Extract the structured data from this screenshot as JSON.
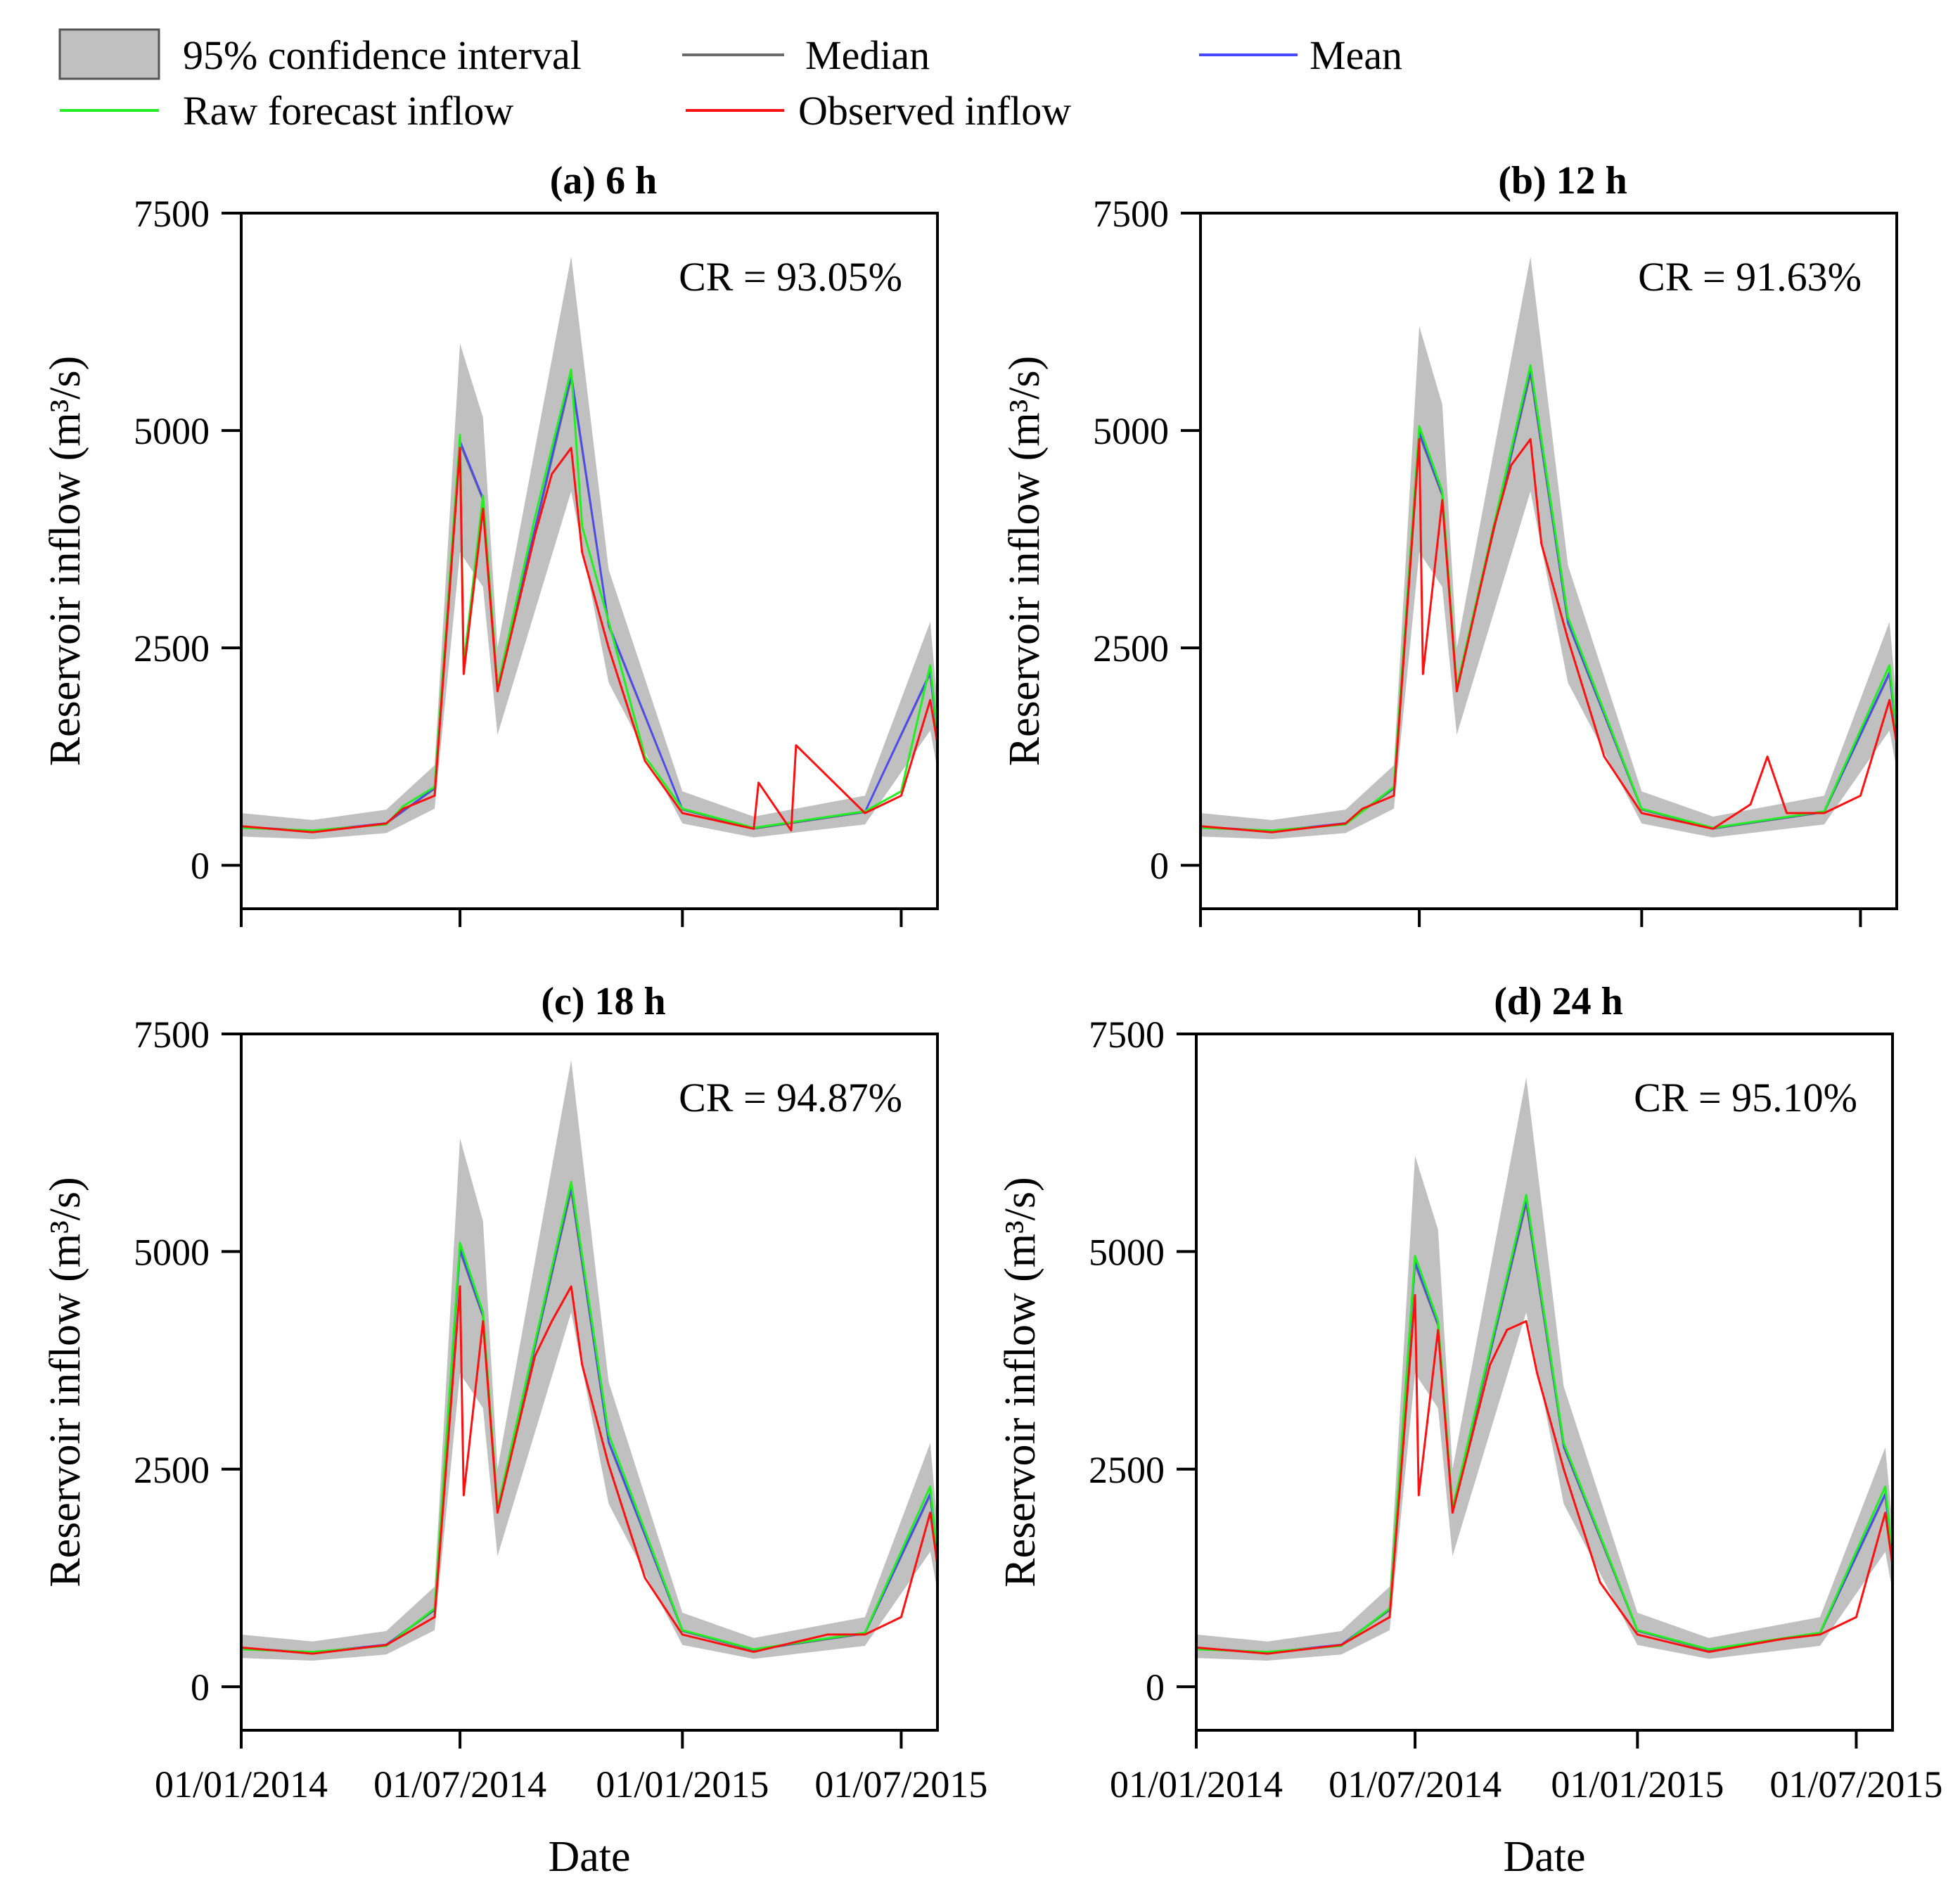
{
  "legend": {
    "ci": {
      "label": "95% confidence interval",
      "color": "#c0c0c0"
    },
    "median": {
      "label": "Median",
      "color": "#6b6b6b"
    },
    "mean": {
      "label": "Mean",
      "color": "#4848ff"
    },
    "raw": {
      "label": "Raw forecast inflow",
      "color": "#22ee22"
    },
    "observed": {
      "label": "Observed inflow",
      "color": "#ff1010"
    }
  },
  "chart_data": [
    {
      "type": "line",
      "title": "(a) 6 h",
      "xlabel": "",
      "ylabel": "Reservoir inflow (m³/s)",
      "ylim": [
        -500,
        7500
      ],
      "yticks": [
        "0",
        "2500",
        "5000",
        "7500"
      ],
      "xticks": [],
      "xlim": [
        "01/01/2014",
        "31/07/2015"
      ],
      "annotation": "CR = 93.05%",
      "series": [
        {
          "name": "Observed inflow",
          "x": [
            "01/01/2014",
            "01/03/2014",
            "01/05/2014",
            "15/05/2014",
            "10/06/2014",
            "01/07/2014",
            "04/07/2014",
            "20/07/2014",
            "01/08/2014",
            "01/09/2014",
            "15/09/2014",
            "01/10/2014",
            "10/10/2014",
            "01/11/2014",
            "01/12/2014",
            "01/01/2015",
            "01/03/2015",
            "05/03/2015",
            "01/04/2015",
            "05/04/2015",
            "01/06/2015",
            "01/07/2015",
            "25/07/2015",
            "31/07/2015"
          ],
          "y": [
            450,
            380,
            480,
            650,
            800,
            4800,
            2200,
            4100,
            2000,
            3800,
            4500,
            4800,
            3600,
            2500,
            1200,
            600,
            420,
            950,
            400,
            1380,
            600,
            800,
            1900,
            1400
          ]
        },
        {
          "name": "Raw forecast inflow",
          "x": [
            "01/01/2014",
            "01/03/2014",
            "01/05/2014",
            "15/05/2014",
            "10/06/2014",
            "01/07/2014",
            "04/07/2014",
            "20/07/2014",
            "01/08/2014",
            "01/09/2014",
            "15/09/2014",
            "01/10/2014",
            "10/10/2014",
            "01/11/2014",
            "01/12/2014",
            "01/01/2015",
            "01/03/2015",
            "01/06/2015",
            "01/07/2015",
            "25/07/2015",
            "31/07/2015"
          ],
          "y": [
            430,
            400,
            470,
            680,
            900,
            4950,
            2300,
            4250,
            2050,
            4000,
            4800,
            5700,
            3900,
            2800,
            1250,
            650,
            430,
            620,
            850,
            2300,
            1500
          ]
        },
        {
          "name": "Median",
          "x": [
            "01/01/2014",
            "01/03/2014",
            "01/05/2014",
            "10/06/2014",
            "01/07/2014",
            "20/07/2014",
            "01/08/2014",
            "01/10/2014",
            "01/11/2014",
            "01/01/2015",
            "01/03/2015",
            "01/06/2015",
            "25/07/2015",
            "31/07/2015"
          ],
          "y": [
            440,
            390,
            480,
            880,
            4850,
            4200,
            2030,
            5600,
            2750,
            640,
            420,
            610,
            2200,
            1450
          ]
        },
        {
          "name": "Mean",
          "x": [
            "01/01/2014",
            "01/03/2014",
            "01/05/2014",
            "10/06/2014",
            "01/07/2014",
            "20/07/2014",
            "01/08/2014",
            "01/10/2014",
            "01/11/2014",
            "01/01/2015",
            "01/03/2015",
            "01/06/2015",
            "25/07/2015",
            "31/07/2015"
          ],
          "y": [
            445,
            395,
            485,
            890,
            4880,
            4220,
            2040,
            5650,
            2770,
            645,
            425,
            615,
            2220,
            1460
          ]
        },
        {
          "name": "95% confidence interval",
          "x": [
            "01/01/2014",
            "01/03/2014",
            "01/05/2014",
            "10/06/2014",
            "01/07/2014",
            "20/07/2014",
            "01/08/2014",
            "01/10/2014",
            "01/11/2014",
            "01/01/2015",
            "01/03/2015",
            "01/06/2015",
            "25/07/2015",
            "31/07/2015"
          ],
          "upper": [
            600,
            520,
            640,
            1150,
            6000,
            5150,
            2500,
            7000,
            3400,
            850,
            560,
            800,
            2800,
            1850
          ],
          "lower": [
            330,
            300,
            370,
            650,
            3600,
            3200,
            1500,
            4300,
            2100,
            480,
            320,
            470,
            1550,
            1100
          ]
        }
      ]
    },
    {
      "type": "line",
      "title": "(b) 12 h",
      "xlabel": "",
      "ylabel": "Reservoir inflow (m³/s)",
      "ylim": [
        -500,
        7500
      ],
      "yticks": [
        "0",
        "2500",
        "5000",
        "7500"
      ],
      "xticks": [],
      "xlim": [
        "01/01/2014",
        "31/07/2015"
      ],
      "annotation": "CR = 91.63%",
      "series": [
        {
          "name": "Observed inflow",
          "x": [
            "01/01/2014",
            "01/03/2014",
            "01/05/2014",
            "15/05/2014",
            "10/06/2014",
            "01/07/2014",
            "04/07/2014",
            "20/07/2014",
            "01/08/2014",
            "01/09/2014",
            "15/09/2014",
            "01/10/2014",
            "10/10/2014",
            "01/11/2014",
            "01/12/2014",
            "01/01/2015",
            "01/03/2015",
            "01/04/2015",
            "15/04/2015",
            "01/05/2015",
            "01/06/2015",
            "01/07/2015",
            "25/07/2015",
            "31/07/2015"
          ],
          "y": [
            450,
            380,
            480,
            650,
            800,
            4900,
            2200,
            4200,
            2000,
            3900,
            4600,
            4900,
            3700,
            2600,
            1250,
            600,
            420,
            700,
            1250,
            600,
            600,
            800,
            1900,
            1400
          ]
        },
        {
          "name": "Raw forecast inflow",
          "x": [
            "01/01/2014",
            "01/03/2014",
            "01/05/2014",
            "10/06/2014",
            "01/07/2014",
            "20/07/2014",
            "01/08/2014",
            "01/10/2014",
            "01/11/2014",
            "01/01/2015",
            "01/03/2015",
            "01/06/2015",
            "25/07/2015",
            "31/07/2015"
          ],
          "y": [
            430,
            400,
            470,
            900,
            5050,
            4300,
            2050,
            5750,
            2850,
            650,
            430,
            620,
            2300,
            1500
          ]
        },
        {
          "name": "Median",
          "x": [
            "01/01/2014",
            "01/03/2014",
            "01/05/2014",
            "10/06/2014",
            "01/07/2014",
            "20/07/2014",
            "01/08/2014",
            "01/10/2014",
            "01/11/2014",
            "01/01/2015",
            "01/03/2015",
            "01/06/2015",
            "25/07/2015",
            "31/07/2015"
          ],
          "y": [
            440,
            390,
            480,
            880,
            4950,
            4250,
            2030,
            5650,
            2780,
            640,
            420,
            610,
            2200,
            1450
          ]
        },
        {
          "name": "Mean",
          "x": [
            "01/01/2014",
            "01/03/2014",
            "01/05/2014",
            "10/06/2014",
            "01/07/2014",
            "20/07/2014",
            "01/08/2014",
            "01/10/2014",
            "01/11/2014",
            "01/01/2015",
            "01/03/2015",
            "01/06/2015",
            "25/07/2015",
            "31/07/2015"
          ],
          "y": [
            445,
            395,
            485,
            890,
            4980,
            4270,
            2040,
            5700,
            2800,
            645,
            425,
            615,
            2220,
            1460
          ]
        },
        {
          "name": "95% confidence interval",
          "x": [
            "01/01/2014",
            "01/03/2014",
            "01/05/2014",
            "10/06/2014",
            "01/07/2014",
            "20/07/2014",
            "01/08/2014",
            "01/10/2014",
            "01/11/2014",
            "01/01/2015",
            "01/03/2015",
            "01/06/2015",
            "25/07/2015",
            "31/07/2015"
          ],
          "upper": [
            600,
            520,
            640,
            1150,
            6200,
            5300,
            2500,
            7000,
            3450,
            850,
            560,
            800,
            2800,
            1850
          ],
          "lower": [
            330,
            300,
            370,
            650,
            3600,
            3200,
            1500,
            4300,
            2100,
            480,
            320,
            470,
            1550,
            1100
          ]
        }
      ]
    },
    {
      "type": "line",
      "title": "(c) 18 h",
      "xlabel": "Date",
      "ylabel": "Reservoir inflow (m³/s)",
      "ylim": [
        -500,
        7500
      ],
      "yticks": [
        "0",
        "2500",
        "5000",
        "7500"
      ],
      "xticks": [
        "01/01/2014",
        "01/07/2014",
        "01/01/2015",
        "01/07/2015"
      ],
      "xlim": [
        "01/01/2014",
        "31/07/2015"
      ],
      "annotation": "CR = 94.87%",
      "series": [
        {
          "name": "Observed inflow",
          "x": [
            "01/01/2014",
            "01/03/2014",
            "01/05/2014",
            "10/06/2014",
            "01/07/2014",
            "04/07/2014",
            "20/07/2014",
            "01/08/2014",
            "01/09/2014",
            "15/09/2014",
            "01/10/2014",
            "10/10/2014",
            "01/11/2014",
            "01/12/2014",
            "01/01/2015",
            "01/03/2015",
            "01/05/2015",
            "01/06/2015",
            "01/07/2015",
            "25/07/2015",
            "31/07/2015"
          ],
          "y": [
            450,
            380,
            480,
            800,
            4600,
            2200,
            4200,
            2000,
            3800,
            4200,
            4600,
            3700,
            2550,
            1250,
            600,
            400,
            600,
            600,
            800,
            2000,
            1400
          ]
        },
        {
          "name": "Raw forecast inflow",
          "x": [
            "01/01/2014",
            "01/03/2014",
            "01/05/2014",
            "10/06/2014",
            "01/07/2014",
            "20/07/2014",
            "01/08/2014",
            "01/10/2014",
            "01/11/2014",
            "01/01/2015",
            "01/03/2015",
            "01/06/2015",
            "25/07/2015",
            "31/07/2015"
          ],
          "y": [
            430,
            400,
            470,
            900,
            5100,
            4300,
            2050,
            5800,
            2900,
            650,
            430,
            620,
            2300,
            1500
          ]
        },
        {
          "name": "Median",
          "x": [
            "01/01/2014",
            "01/03/2014",
            "01/05/2014",
            "10/06/2014",
            "01/07/2014",
            "20/07/2014",
            "01/08/2014",
            "01/10/2014",
            "01/11/2014",
            "01/01/2015",
            "01/03/2015",
            "01/06/2015",
            "25/07/2015",
            "31/07/2015"
          ],
          "y": [
            440,
            390,
            480,
            880,
            5000,
            4250,
            2030,
            5700,
            2800,
            640,
            420,
            610,
            2200,
            1450
          ]
        },
        {
          "name": "Mean",
          "x": [
            "01/01/2014",
            "01/03/2014",
            "01/05/2014",
            "10/06/2014",
            "01/07/2014",
            "20/07/2014",
            "01/08/2014",
            "01/10/2014",
            "01/11/2014",
            "01/01/2015",
            "01/03/2015",
            "01/06/2015",
            "25/07/2015",
            "31/07/2015"
          ],
          "y": [
            445,
            395,
            485,
            890,
            5030,
            4270,
            2040,
            5750,
            2820,
            645,
            425,
            615,
            2220,
            1460
          ]
        },
        {
          "name": "95% confidence interval",
          "x": [
            "01/01/2014",
            "01/03/2014",
            "01/05/2014",
            "10/06/2014",
            "01/07/2014",
            "20/07/2014",
            "01/08/2014",
            "01/10/2014",
            "01/11/2014",
            "01/01/2015",
            "01/03/2015",
            "01/06/2015",
            "25/07/2015",
            "31/07/2015"
          ],
          "upper": [
            600,
            520,
            640,
            1150,
            6300,
            5350,
            2500,
            7200,
            3500,
            850,
            560,
            800,
            2800,
            1850
          ],
          "lower": [
            330,
            300,
            370,
            650,
            3600,
            3200,
            1500,
            4300,
            2100,
            480,
            320,
            470,
            1550,
            1100
          ]
        }
      ]
    },
    {
      "type": "line",
      "title": "(d) 24 h",
      "xlabel": "Date",
      "ylabel": "Reservoir inflow (m³/s)",
      "ylim": [
        -500,
        7500
      ],
      "yticks": [
        "0",
        "2500",
        "5000",
        "7500"
      ],
      "xticks": [
        "01/01/2014",
        "01/07/2014",
        "01/01/2015",
        "01/07/2015"
      ],
      "xlim": [
        "01/01/2014",
        "31/07/2015"
      ],
      "annotation": "CR = 95.10%",
      "series": [
        {
          "name": "Observed inflow",
          "x": [
            "01/01/2014",
            "01/03/2014",
            "01/05/2014",
            "10/06/2014",
            "01/07/2014",
            "04/07/2014",
            "20/07/2014",
            "01/08/2014",
            "01/09/2014",
            "15/09/2014",
            "01/10/2014",
            "10/10/2014",
            "01/11/2014",
            "01/12/2014",
            "01/01/2015",
            "01/03/2015",
            "01/05/2015",
            "01/06/2015",
            "01/07/2015",
            "25/07/2015",
            "31/07/2015"
          ],
          "y": [
            450,
            380,
            480,
            800,
            4500,
            2200,
            4100,
            2000,
            3700,
            4100,
            4200,
            3600,
            2500,
            1200,
            600,
            400,
            550,
            600,
            800,
            2000,
            1400
          ]
        },
        {
          "name": "Raw forecast inflow",
          "x": [
            "01/01/2014",
            "01/03/2014",
            "01/05/2014",
            "10/06/2014",
            "01/07/2014",
            "20/07/2014",
            "01/08/2014",
            "01/10/2014",
            "01/11/2014",
            "01/01/2015",
            "01/03/2015",
            "01/06/2015",
            "25/07/2015",
            "31/07/2015"
          ],
          "y": [
            430,
            400,
            470,
            900,
            4950,
            4200,
            2050,
            5650,
            2800,
            650,
            430,
            620,
            2300,
            1500
          ]
        },
        {
          "name": "Median",
          "x": [
            "01/01/2014",
            "01/03/2014",
            "01/05/2014",
            "10/06/2014",
            "01/07/2014",
            "20/07/2014",
            "01/08/2014",
            "01/10/2014",
            "01/11/2014",
            "01/01/2015",
            "01/03/2015",
            "01/06/2015",
            "25/07/2015",
            "31/07/2015"
          ],
          "y": [
            440,
            390,
            480,
            880,
            4850,
            4150,
            2030,
            5550,
            2750,
            640,
            420,
            610,
            2200,
            1450
          ]
        },
        {
          "name": "Mean",
          "x": [
            "01/01/2014",
            "01/03/2014",
            "01/05/2014",
            "10/06/2014",
            "01/07/2014",
            "20/07/2014",
            "01/08/2014",
            "01/10/2014",
            "01/11/2014",
            "01/01/2015",
            "01/03/2015",
            "01/06/2015",
            "25/07/2015",
            "31/07/2015"
          ],
          "y": [
            445,
            395,
            485,
            890,
            4880,
            4170,
            2040,
            5600,
            2770,
            645,
            425,
            615,
            2220,
            1460
          ]
        },
        {
          "name": "95% confidence interval",
          "x": [
            "01/01/2014",
            "01/03/2014",
            "01/05/2014",
            "10/06/2014",
            "01/07/2014",
            "20/07/2014",
            "01/08/2014",
            "01/10/2014",
            "01/11/2014",
            "01/01/2015",
            "01/03/2015",
            "01/06/2015",
            "25/07/2015",
            "31/07/2015"
          ],
          "upper": [
            600,
            520,
            640,
            1150,
            6100,
            5250,
            2500,
            7000,
            3450,
            850,
            560,
            800,
            2750,
            1850
          ],
          "lower": [
            330,
            300,
            370,
            650,
            3600,
            3200,
            1500,
            4300,
            2100,
            480,
            320,
            470,
            1550,
            1100
          ]
        }
      ]
    }
  ]
}
